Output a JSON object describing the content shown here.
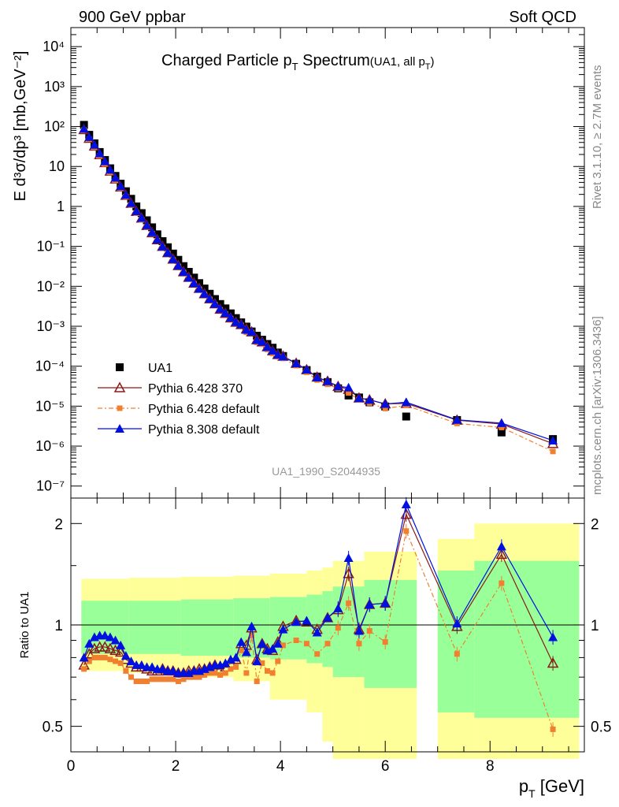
{
  "header": {
    "left": "900 GeV ppbar",
    "right": "Soft QCD"
  },
  "side": {
    "rivet": "Rivet 3.1.10, ≥ 2.7M events",
    "mcplots": "mcplots.cern.ch [arXiv:1306.3436]"
  },
  "colors": {
    "data": "#000000",
    "py6_370": "#8b1a1a",
    "py6_def": "#f08030",
    "py8": "#0010e0",
    "band_inner": "#99ff99",
    "band_outer": "#ffff99"
  },
  "chart_data": [
    {
      "type": "scatter",
      "panel": "main",
      "title_main": "Charged Particle p",
      "title_sub": "T",
      "title_main2": " Spectrum",
      "title_small": "(UA1, all p",
      "title_small_sub": "T",
      "title_small_end": ")",
      "ylabel": "E d³σ/dp³ [mb,GeV⁻²]",
      "analysis_label": "UA1_1990_S2044935",
      "yscale": "log",
      "xlim": [
        0,
        9.8
      ],
      "ylim": [
        5e-08,
        30000.0
      ],
      "ytick_labels": [
        "10⁻⁷",
        "10⁻⁶",
        "10⁻⁵",
        "10⁻⁴",
        "10⁻³",
        "10⁻²",
        "10⁻¹",
        "1",
        "10",
        "10²",
        "10³",
        "10⁴"
      ],
      "legend_position": "lower-left",
      "legend": [
        {
          "label": "UA1",
          "key": "data"
        },
        {
          "label": "Pythia 6.428 370",
          "key": "py6_370"
        },
        {
          "label": "Pythia 6.428 default",
          "key": "py6_def"
        },
        {
          "label": "Pythia 8.308 default",
          "key": "py8"
        }
      ],
      "x": [
        0.25,
        0.35,
        0.45,
        0.55,
        0.65,
        0.75,
        0.85,
        0.95,
        1.05,
        1.15,
        1.25,
        1.35,
        1.45,
        1.55,
        1.65,
        1.75,
        1.85,
        1.95,
        2.05,
        2.15,
        2.25,
        2.35,
        2.45,
        2.55,
        2.65,
        2.75,
        2.85,
        2.95,
        3.05,
        3.15,
        3.25,
        3.35,
        3.45,
        3.55,
        3.65,
        3.75,
        3.85,
        3.95,
        4.05,
        4.3,
        4.5,
        4.7,
        4.9,
        5.1,
        5.3,
        5.5,
        5.7,
        6.0,
        6.4,
        7.37,
        8.22,
        9.2
      ],
      "series": [
        {
          "name": "UA1",
          "key": "data",
          "marker": "square",
          "values": [
            110,
            62,
            38,
            23,
            14.5,
            9.0,
            5.8,
            3.7,
            2.4,
            1.55,
            1.0,
            0.68,
            0.45,
            0.3,
            0.2,
            0.135,
            0.095,
            0.066,
            0.046,
            0.032,
            0.023,
            0.0165,
            0.012,
            0.0088,
            0.0065,
            0.0048,
            0.0036,
            0.0028,
            0.0021,
            0.0016,
            0.00125,
            0.00098,
            0.00074,
            0.00058,
            0.00046,
            0.00036,
            0.00029,
            0.00022,
            0.00018,
            0.000115,
            8e-05,
            5.5e-05,
            4e-05,
            2.8e-05,
            1.85e-05,
            1.65e-05,
            1.25e-05,
            9.8e-06,
            5.5e-06,
            4.5e-06,
            2.2e-06,
            1.5e-06
          ]
        },
        {
          "name": "Pythia 6.428 370",
          "key": "py6_370",
          "marker": "open-triangle",
          "ratio": [
            0.76,
            0.82,
            0.85,
            0.86,
            0.86,
            0.85,
            0.84,
            0.83,
            0.79,
            0.77,
            0.75,
            0.75,
            0.74,
            0.73,
            0.73,
            0.74,
            0.73,
            0.73,
            0.72,
            0.72,
            0.73,
            0.73,
            0.74,
            0.74,
            0.75,
            0.76,
            0.74,
            0.75,
            0.77,
            0.79,
            0.88,
            0.87,
            0.98,
            0.79,
            0.88,
            0.85,
            0.84,
            0.89,
            0.99,
            1.03,
            1.02,
            0.97,
            1.05,
            1.11,
            1.42,
            0.97,
            1.15,
            1.16,
            2.13,
            0.99,
            1.62,
            0.77
          ]
        },
        {
          "name": "Pythia 6.428 default",
          "key": "py6_def",
          "marker": "square-small",
          "ratio": [
            0.74,
            0.78,
            0.8,
            0.8,
            0.8,
            0.79,
            0.78,
            0.77,
            0.73,
            0.7,
            0.68,
            0.68,
            0.68,
            0.69,
            0.69,
            0.69,
            0.69,
            0.69,
            0.68,
            0.69,
            0.7,
            0.7,
            0.7,
            0.71,
            0.72,
            0.72,
            0.71,
            0.72,
            0.74,
            0.75,
            0.84,
            0.72,
            0.93,
            0.68,
            0.77,
            0.73,
            0.72,
            0.78,
            0.87,
            0.9,
            0.88,
            0.82,
            0.88,
            0.98,
            1.16,
            0.88,
            0.96,
            0.89,
            1.9,
            0.82,
            1.33,
            0.49
          ]
        },
        {
          "name": "Pythia 8.308 default",
          "key": "py8",
          "marker": "filled-triangle",
          "ratio": [
            0.8,
            0.88,
            0.92,
            0.93,
            0.93,
            0.92,
            0.9,
            0.87,
            0.81,
            0.78,
            0.76,
            0.76,
            0.75,
            0.75,
            0.74,
            0.74,
            0.73,
            0.73,
            0.72,
            0.72,
            0.72,
            0.73,
            0.73,
            0.74,
            0.75,
            0.76,
            0.76,
            0.77,
            0.79,
            0.8,
            0.89,
            0.83,
            0.99,
            0.78,
            0.88,
            0.84,
            0.85,
            0.88,
            0.97,
            1.02,
            1.03,
            0.95,
            1.05,
            1.12,
            1.58,
            0.96,
            1.15,
            1.16,
            2.28,
            1.01,
            1.71,
            0.92
          ]
        }
      ]
    },
    {
      "type": "scatter",
      "panel": "ratio",
      "ylabel": "Ratio to UA1",
      "xlabel": "p",
      "xlabel_sub": "T",
      "xlabel_unit": " [GeV]",
      "yscale": "log",
      "xlim": [
        0,
        9.8
      ],
      "ylim": [
        0.42,
        2.38
      ],
      "xticks": [
        0,
        2,
        4,
        6,
        8
      ],
      "yticks": [
        0.5,
        1,
        2
      ],
      "ytick_labels": [
        "0.5",
        "1",
        "2"
      ],
      "uncertainty_bands": [
        {
          "x0": 0.2,
          "x1": 1.1,
          "inner": [
            0.82,
            1.18
          ],
          "outer": [
            0.73,
            1.37
          ]
        },
        {
          "x0": 1.1,
          "x1": 2.1,
          "inner": [
            0.82,
            1.18
          ],
          "outer": [
            0.72,
            1.38
          ]
        },
        {
          "x0": 2.1,
          "x1": 3.1,
          "inner": [
            0.81,
            1.19
          ],
          "outer": [
            0.7,
            1.39
          ]
        },
        {
          "x0": 3.1,
          "x1": 3.8,
          "inner": [
            0.8,
            1.2
          ],
          "outer": [
            0.68,
            1.4
          ]
        },
        {
          "x0": 3.8,
          "x1": 4.5,
          "inner": [
            0.79,
            1.21
          ],
          "outer": [
            0.6,
            1.42
          ]
        },
        {
          "x0": 4.5,
          "x1": 4.8,
          "inner": [
            0.77,
            1.23
          ],
          "outer": [
            0.55,
            1.45
          ]
        },
        {
          "x0": 4.8,
          "x1": 5.0,
          "inner": [
            0.75,
            1.26
          ],
          "outer": [
            0.45,
            1.48
          ]
        },
        {
          "x0": 5.0,
          "x1": 5.6,
          "inner": [
            0.7,
            1.3
          ],
          "outer": [
            0.4,
            1.55
          ]
        },
        {
          "x0": 5.6,
          "x1": 6.6,
          "inner": [
            0.65,
            1.36
          ],
          "outer": [
            0.4,
            1.65
          ]
        },
        {
          "x0": 7.0,
          "x1": 7.7,
          "inner": [
            0.55,
            1.45
          ],
          "outer": [
            0.4,
            1.8
          ]
        },
        {
          "x0": 7.7,
          "x1": 9.7,
          "inner": [
            0.53,
            1.55
          ],
          "outer": [
            0.4,
            2.0
          ]
        }
      ]
    }
  ]
}
